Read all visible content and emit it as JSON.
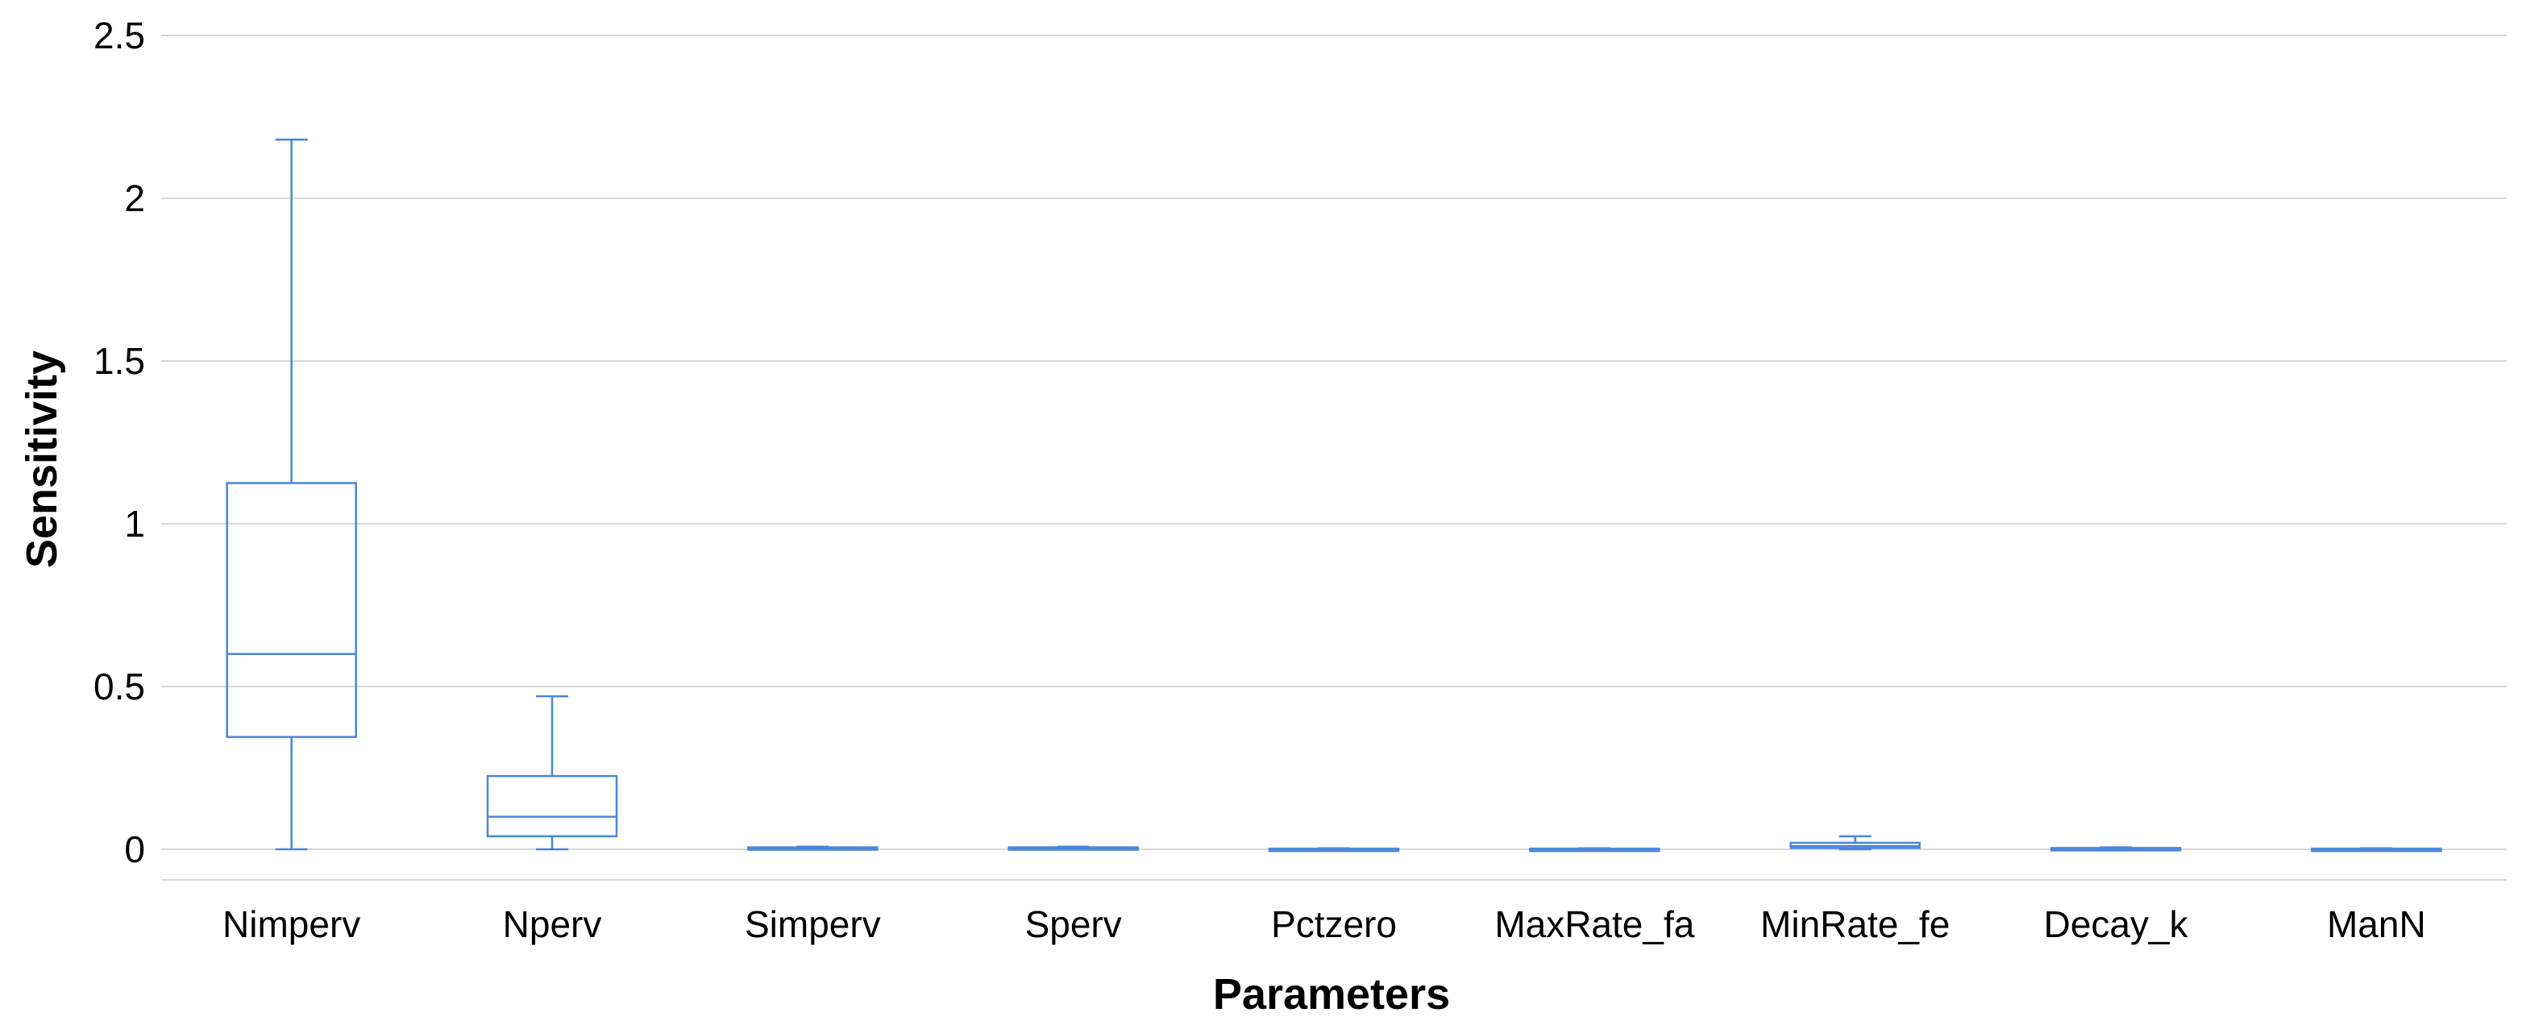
{
  "chart_data": {
    "type": "box",
    "title": "",
    "xlabel": "Parameters",
    "ylabel": "Sensitivity",
    "ylim": [
      0,
      2.5
    ],
    "yticks": [
      0,
      0.5,
      1,
      1.5,
      2,
      2.5
    ],
    "ytick_labels": [
      "0",
      "0.5",
      "1",
      "1.5",
      "2",
      "2.5"
    ],
    "grid": "horizontal",
    "legend": "none",
    "series_color": "#4a86d8",
    "categories": [
      "Nimperv",
      "Nperv",
      "Simperv",
      "Sperv",
      "Pctzero",
      "MaxRate_fa",
      "MinRate_fe",
      "Decay_k",
      "ManN"
    ],
    "boxes": [
      {
        "min": 0.0,
        "q1": 0.345,
        "median": 0.6,
        "q3": 1.125,
        "max": 2.18
      },
      {
        "min": 0.0,
        "q1": 0.04,
        "median": 0.1,
        "q3": 0.225,
        "max": 0.47
      },
      {
        "min": 0.0,
        "q1": 0.002,
        "median": 0.004,
        "q3": 0.006,
        "max": 0.008
      },
      {
        "min": 0.0,
        "q1": 0.002,
        "median": 0.004,
        "q3": 0.006,
        "max": 0.008
      },
      {
        "min": 0.0,
        "q1": 0.0,
        "median": 0.001,
        "q3": 0.002,
        "max": 0.003
      },
      {
        "min": 0.0,
        "q1": 0.0,
        "median": 0.001,
        "q3": 0.002,
        "max": 0.003
      },
      {
        "min": 0.0,
        "q1": 0.004,
        "median": 0.01,
        "q3": 0.02,
        "max": 0.04
      },
      {
        "min": 0.0,
        "q1": 0.001,
        "median": 0.002,
        "q3": 0.004,
        "max": 0.006
      },
      {
        "min": 0.0,
        "q1": 0.0,
        "median": 0.001,
        "q3": 0.002,
        "max": 0.003
      }
    ]
  }
}
